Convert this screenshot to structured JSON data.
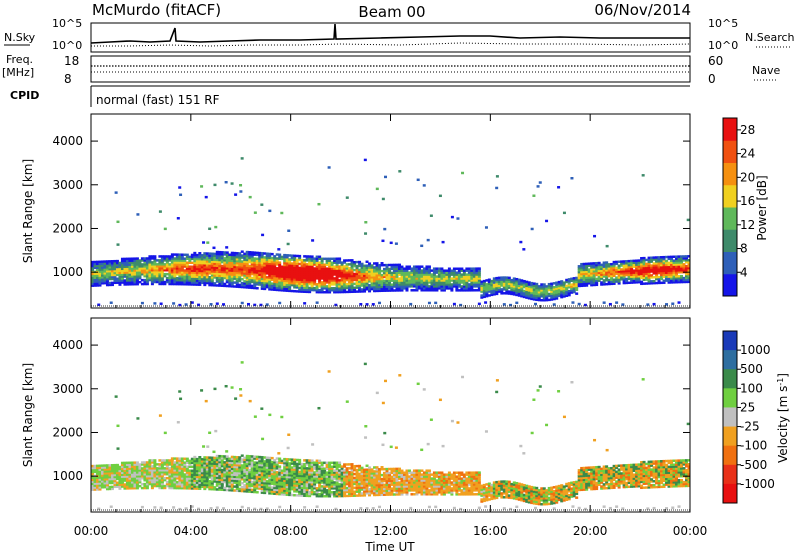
{
  "header": {
    "station": "McMurdo (fitACF)",
    "beam": "Beam 00",
    "date": "06/Nov/2014"
  },
  "status_panel": {
    "nsky_label": "N.Sky",
    "nsky_ticks": [
      "10^5",
      "10^0"
    ],
    "nsearch_label": "N.Search",
    "nsearch_ticks": [
      "10^5",
      "10^0"
    ],
    "freq_label": "Freq.",
    "freq_unit": "[MHz]",
    "freq_ticks": [
      "18",
      "8"
    ],
    "nave_label": "Nave",
    "nave_ticks": [
      "60",
      "0"
    ],
    "cpid_label": "CPID",
    "cpid_value": "normal (fast) 151 RF"
  },
  "x_axis": {
    "label": "Time UT",
    "ticks": [
      "00:00",
      "04:00",
      "08:00",
      "12:00",
      "16:00",
      "20:00",
      "00:00"
    ],
    "tick_hours": [
      0,
      4,
      8,
      12,
      16,
      20,
      24
    ]
  },
  "chart_data": [
    {
      "type": "heatmap",
      "panel": "power",
      "ylabel": "Slant Range [km]",
      "y_ticks": [
        1000,
        2000,
        3000,
        4000
      ],
      "ylim": [
        180,
        4620
      ],
      "xlim_hours": [
        0,
        24
      ],
      "colorbar": {
        "label": "Power [dB]",
        "ticks": [
          "4",
          "8",
          "12",
          "16",
          "20",
          "24",
          "28"
        ],
        "tick_values": [
          4,
          8,
          12,
          16,
          20,
          24,
          28
        ],
        "range": [
          0,
          30
        ],
        "colors": [
          "#1515e8",
          "#2e5fb8",
          "#3e8a6a",
          "#5fb85a",
          "#f0d020",
          "#f59010",
          "#f05010",
          "#e81010"
        ]
      }
    },
    {
      "type": "heatmap",
      "panel": "velocity",
      "ylabel": "Slant Range [km]",
      "y_ticks": [
        1000,
        2000,
        3000,
        4000
      ],
      "ylim": [
        180,
        4620
      ],
      "xlim_hours": [
        0,
        24
      ],
      "colorbar": {
        "label": "Velocity [m s^-1]",
        "ticks": [
          "1000",
          "500",
          "100",
          "25",
          "-25",
          "-100",
          "-500",
          "-1000"
        ],
        "colors": [
          "#1a3ab8",
          "#2e6ea0",
          "#3a8a4a",
          "#6fcf40",
          "#c0c0c0",
          "#f0a020",
          "#f07010",
          "#e83018",
          "#e81010"
        ]
      }
    }
  ]
}
